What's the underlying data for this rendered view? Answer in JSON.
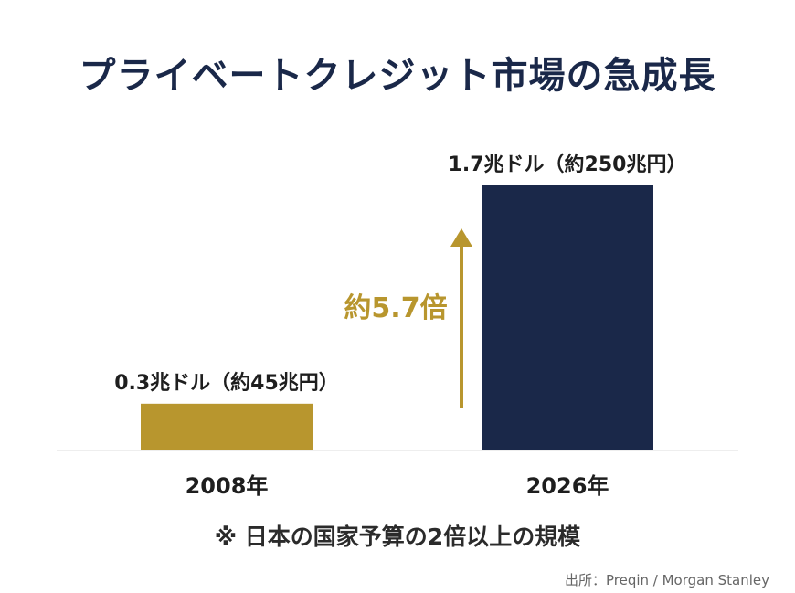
{
  "title": "プライベートクレジット市場の急成長",
  "chart_data": {
    "type": "bar",
    "categories": [
      "2008年",
      "2026年"
    ],
    "values": [
      0.3,
      1.7
    ],
    "value_labels": [
      "0.3兆ドル（約45兆円）",
      "1.7兆ドル（約250兆円）"
    ],
    "bar_colors": [
      "#b8962e",
      "#1a2849"
    ],
    "growth_annotation": "約5.7倍",
    "growth_color": "#b8962e",
    "ylim": [
      0,
      1.7
    ],
    "grid": false
  },
  "note": "※ 日本の国家予算の2倍以上の規模",
  "source": "出所：Preqin / Morgan Stanley"
}
